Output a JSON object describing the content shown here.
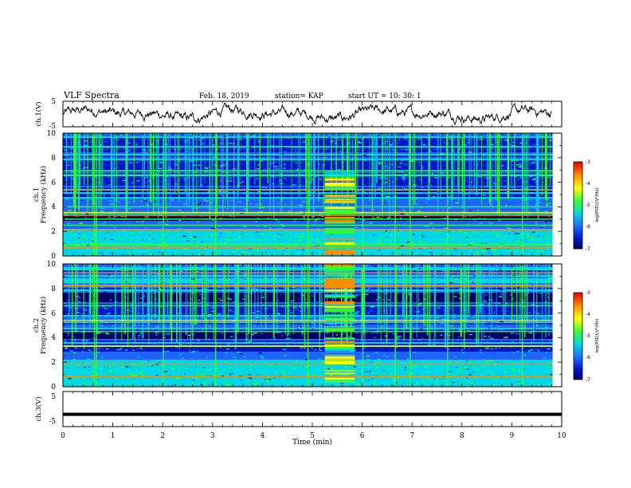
{
  "header": {
    "title": "VLF Spectra",
    "date": "Feb. 18, 2019",
    "station": "station= KAP",
    "start": "start  UT  =   10: 30: 1"
  },
  "colors": {
    "bg_dark": "#000066",
    "dark_blue": "#0019c8",
    "blue": "#1e64ff",
    "cyan": "#00d7e6",
    "green": "#32ff32",
    "yellow": "#ffff00",
    "orange": "#ff8c00",
    "red": "#e60000",
    "trace": "#000000"
  },
  "chart_data": [
    {
      "type": "line",
      "id": "ch1-waveform",
      "ylabel": "ch.1(V)",
      "ylim": [
        -5,
        5
      ],
      "yticks": [
        "5",
        "-5"
      ],
      "xlim": [
        0,
        10
      ],
      "description_values": "voltage trace fluctuating roughly between -3 and 3 V"
    },
    {
      "type": "heatmap",
      "id": "ch1-spectrogram",
      "ylabel_line1": "ch.1",
      "ylabel_line2": "Frequency  (kHz)",
      "ylim": [
        0,
        10
      ],
      "yticks": [
        "0",
        "2",
        "4",
        "6",
        "8",
        "10"
      ],
      "xlim": [
        0,
        10
      ],
      "burst_interval_min": [
        5.25,
        5.85
      ],
      "bands_khz": [
        {
          "f": 0.7,
          "color": "orange"
        },
        {
          "f": 0.95,
          "color": "green"
        },
        {
          "f": 2.15,
          "color": "orange"
        },
        {
          "f": 2.5,
          "color": "green"
        },
        {
          "f": 3.0,
          "color": "green"
        },
        {
          "f": 3.3,
          "color": "orange"
        },
        {
          "f": 3.55,
          "color": "yellow"
        },
        {
          "f": 4.0,
          "color": "green"
        },
        {
          "f": 5.4,
          "color": "orange"
        },
        {
          "f": 6.6,
          "color": "green"
        },
        {
          "f": 6.95,
          "color": "green"
        }
      ],
      "colorbar": {
        "label": "log(PSD)(V²/Hz)",
        "range": [
          -7,
          -3
        ],
        "ticks": [
          "-3",
          "-4",
          "-5",
          "-6",
          "-7"
        ]
      }
    },
    {
      "type": "heatmap",
      "id": "ch2-spectrogram",
      "ylabel_line1": "ch.2",
      "ylabel_line2": "Frequency  (kHz)",
      "ylim": [
        0,
        10
      ],
      "yticks": [
        "0",
        "2",
        "4",
        "6",
        "8",
        "10"
      ],
      "xlim": [
        0,
        10
      ],
      "burst_interval_min": [
        5.25,
        5.85
      ],
      "bands_khz": [
        {
          "f": 0.8,
          "color": "orange"
        },
        {
          "f": 1.9,
          "color": "orange"
        },
        {
          "f": 3.3,
          "color": "yellow"
        },
        {
          "f": 4.5,
          "color": "green"
        },
        {
          "f": 5.4,
          "color": "yellow"
        },
        {
          "f": 6.6,
          "color": "green"
        },
        {
          "f": 8.2,
          "color": "orange"
        },
        {
          "f": 9.3,
          "color": "orange"
        }
      ],
      "colorbar": {
        "label": "log(PSD)(V²/Hz)",
        "range": [
          -7,
          -3
        ],
        "ticks": [
          "-3",
          "-4",
          "-5",
          "-6",
          "-7"
        ]
      }
    },
    {
      "type": "line",
      "id": "ch3-waveform",
      "ylabel": "ch.3(V)",
      "ylim": [
        -5,
        5
      ],
      "yticks": [
        "5",
        "-5"
      ],
      "xlim": [
        0,
        10
      ],
      "constant_value": -1.5
    }
  ],
  "xaxis": {
    "label": "Time  (min)",
    "ticks": [
      "0",
      "1",
      "2",
      "3",
      "4",
      "5",
      "6",
      "7",
      "8",
      "9",
      "10"
    ]
  }
}
